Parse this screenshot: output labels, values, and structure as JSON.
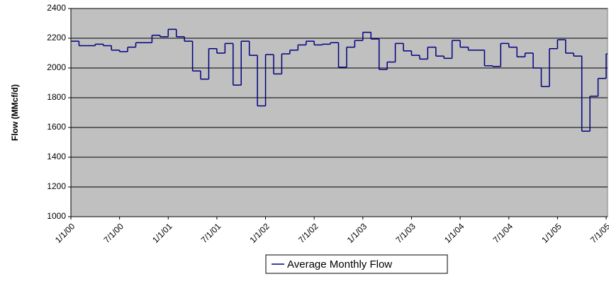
{
  "chart_data": {
    "type": "step-line",
    "y_label": "Flow (MMcf/d)",
    "x": [
      "1/1/00",
      "2/1/00",
      "3/1/00",
      "4/1/00",
      "5/1/00",
      "6/1/00",
      "7/1/00",
      "8/1/00",
      "9/1/00",
      "10/1/00",
      "11/1/00",
      "12/1/00",
      "1/1/01",
      "2/1/01",
      "3/1/01",
      "4/1/01",
      "5/1/01",
      "6/1/01",
      "7/1/01",
      "8/1/01",
      "9/1/01",
      "10/1/01",
      "11/1/01",
      "12/1/01",
      "1/1/02",
      "2/1/02",
      "3/1/02",
      "4/1/02",
      "5/1/02",
      "6/1/02",
      "7/1/02",
      "8/1/02",
      "9/1/02",
      "10/1/02",
      "11/1/02",
      "12/1/02",
      "1/1/03",
      "2/1/03",
      "3/1/03",
      "4/1/03",
      "5/1/03",
      "6/1/03",
      "7/1/03",
      "8/1/03",
      "9/1/03",
      "10/1/03",
      "11/1/03",
      "12/1/03",
      "1/1/04",
      "2/1/04",
      "3/1/04",
      "4/1/04",
      "5/1/04",
      "6/1/04",
      "7/1/04",
      "8/1/04",
      "9/1/04",
      "10/1/04",
      "11/1/04",
      "12/1/04",
      "1/1/05",
      "2/1/05",
      "3/1/05",
      "4/1/05",
      "5/1/05",
      "6/1/05",
      "7/1/05"
    ],
    "series": [
      {
        "name": "Average Monthly Flow",
        "color": "#000080",
        "values": [
          2180,
          2150,
          2150,
          2160,
          2150,
          2120,
          2110,
          2140,
          2170,
          2170,
          2220,
          2210,
          2260,
          2210,
          2180,
          1980,
          1925,
          2130,
          2100,
          2165,
          1885,
          2180,
          2085,
          1745,
          2090,
          1960,
          2095,
          2120,
          2155,
          2180,
          2155,
          2160,
          2170,
          2005,
          2140,
          2185,
          2240,
          2195,
          1990,
          2040,
          2165,
          2115,
          2085,
          2060,
          2140,
          2080,
          2065,
          2185,
          2140,
          2120,
          2120,
          2015,
          2010,
          2165,
          2140,
          2075,
          2100,
          2000,
          1875,
          2130,
          2190,
          2100,
          2080,
          1575,
          1810,
          1930,
          2095
        ]
      }
    ],
    "xlim": [
      "1/1/00",
      "7/1/05"
    ],
    "xticks": [
      "1/1/00",
      "7/1/00",
      "1/1/01",
      "7/1/01",
      "1/1/02",
      "7/1/02",
      "1/1/03",
      "7/1/03",
      "1/1/04",
      "7/1/04",
      "1/1/05",
      "7/1/05"
    ],
    "ylim": [
      1000,
      2400
    ],
    "yticks": [
      1000,
      1200,
      1400,
      1600,
      1800,
      2000,
      2200,
      2400
    ],
    "grid": true,
    "plot_background": "#c0c0c0",
    "legend": "bottom"
  }
}
